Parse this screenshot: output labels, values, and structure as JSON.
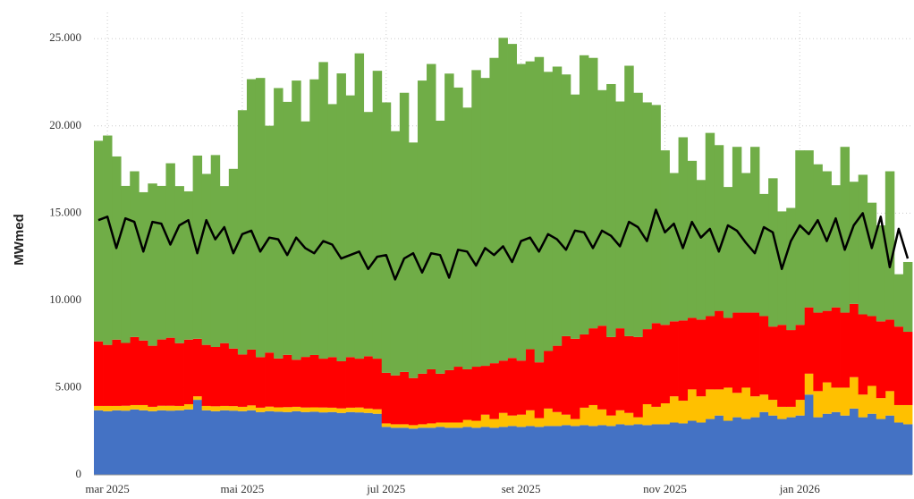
{
  "chart_data": {
    "type": "bar",
    "stacked": true,
    "y_label": "MWmed",
    "categories": [
      null,
      "mar 2025",
      null,
      null,
      null,
      null,
      null,
      null,
      null,
      null,
      null,
      null,
      null,
      null,
      null,
      null,
      "mai 2025",
      null,
      null,
      null,
      null,
      null,
      null,
      null,
      null,
      null,
      null,
      null,
      null,
      null,
      null,
      null,
      "jul 2025",
      null,
      null,
      null,
      null,
      null,
      null,
      null,
      null,
      null,
      null,
      null,
      null,
      null,
      null,
      "set 2025",
      null,
      null,
      null,
      null,
      null,
      null,
      null,
      null,
      null,
      null,
      null,
      null,
      null,
      null,
      null,
      "nov 2025",
      null,
      null,
      null,
      null,
      null,
      null,
      null,
      null,
      null,
      null,
      null,
      null,
      null,
      null,
      "jan 2026",
      null,
      null,
      null,
      null,
      null,
      null,
      null,
      null,
      null,
      null,
      null,
      null
    ],
    "series": [
      {
        "color": "#4472c4",
        "values": [
          3700,
          3650,
          3700,
          3680,
          3750,
          3700,
          3650,
          3700,
          3680,
          3700,
          3750,
          4300,
          3700,
          3650,
          3700,
          3680,
          3650,
          3700,
          3600,
          3650,
          3620,
          3600,
          3650,
          3600,
          3620,
          3580,
          3600,
          3550,
          3600,
          3580,
          3550,
          3500,
          2750,
          2700,
          2700,
          2650,
          2700,
          2700,
          2750,
          2700,
          2700,
          2750,
          2700,
          2750,
          2700,
          2750,
          2800,
          2750,
          2800,
          2750,
          2800,
          2800,
          2850,
          2800,
          2850,
          2800,
          2850,
          2800,
          2900,
          2850,
          2900,
          2850,
          2900,
          2900,
          3000,
          2950,
          3100,
          3000,
          3200,
          3400,
          3100,
          3300,
          3200,
          3300,
          3600,
          3400,
          3200,
          3300,
          3400,
          4600,
          3300,
          3500,
          3600,
          3400,
          3800,
          3300,
          3500,
          3200,
          3400,
          3000,
          2900
        ]
      },
      {
        "color": "#ffc000",
        "values": [
          250,
          300,
          250,
          280,
          250,
          300,
          250,
          260,
          280,
          250,
          300,
          200,
          250,
          280,
          250,
          260,
          250,
          280,
          250,
          260,
          250,
          280,
          250,
          260,
          250,
          280,
          250,
          260,
          250,
          280,
          250,
          260,
          200,
          200,
          200,
          200,
          200,
          250,
          250,
          300,
          300,
          400,
          400,
          700,
          500,
          800,
          600,
          700,
          900,
          500,
          1000,
          800,
          600,
          400,
          1000,
          1200,
          900,
          600,
          800,
          700,
          400,
          1200,
          1000,
          1200,
          1500,
          1300,
          1800,
          1500,
          1700,
          1500,
          1900,
          1400,
          1800,
          1200,
          1000,
          900,
          700,
          600,
          900,
          1200,
          1500,
          1800,
          1400,
          1600,
          1800,
          1300,
          1600,
          1200,
          1400,
          1000,
          1100
        ]
      },
      {
        "color": "#ff0000",
        "values": [
          3700,
          3500,
          3800,
          3600,
          3900,
          3700,
          3500,
          3800,
          3900,
          3600,
          3700,
          3300,
          3500,
          3400,
          3600,
          3300,
          3000,
          3200,
          2900,
          3100,
          2800,
          3000,
          2700,
          2900,
          3000,
          2800,
          2900,
          2700,
          2900,
          2800,
          3000,
          2900,
          2900,
          2800,
          3000,
          2700,
          2900,
          3100,
          2800,
          3000,
          3200,
          2900,
          3100,
          2800,
          3200,
          3000,
          3300,
          3100,
          3500,
          3200,
          3300,
          3800,
          4500,
          4600,
          4200,
          4400,
          4800,
          4500,
          4700,
          4400,
          4600,
          4300,
          4800,
          4500,
          4300,
          4600,
          4100,
          4400,
          4200,
          4500,
          4000,
          4600,
          4300,
          4800,
          4500,
          4200,
          4700,
          4400,
          4300,
          3800,
          4500,
          4100,
          4600,
          4300,
          4200,
          4600,
          4000,
          4400,
          4100,
          4500,
          4200
        ]
      },
      {
        "color": "#70ad47",
        "values": [
          11500,
          12000,
          10500,
          9000,
          9500,
          8500,
          9300,
          8800,
          10000,
          9000,
          8500,
          10500,
          9800,
          11000,
          9000,
          10300,
          14000,
          15500,
          16000,
          13000,
          15500,
          14500,
          16000,
          13500,
          15800,
          17000,
          14500,
          16500,
          15000,
          17500,
          14000,
          16500,
          15500,
          14000,
          16000,
          13500,
          16800,
          17500,
          14500,
          17000,
          16000,
          15000,
          17000,
          16500,
          17500,
          18500,
          18000,
          17000,
          16500,
          17500,
          16000,
          16000,
          15000,
          14000,
          16000,
          15500,
          13500,
          14500,
          13000,
          15500,
          14000,
          13000,
          12500,
          10000,
          8500,
          10500,
          9000,
          8000,
          10500,
          9500,
          7500,
          9500,
          8000,
          9500,
          7000,
          8500,
          6500,
          7000,
          10000,
          9000,
          8500,
          8000,
          7000,
          9500,
          7000,
          8000,
          6500,
          5500,
          8500,
          3000,
          4000
        ]
      },
      {
        "color": "#000000",
        "type": "line",
        "values": [
          14600,
          14800,
          13000,
          14700,
          14500,
          12800,
          14500,
          14400,
          13200,
          14300,
          14600,
          12700,
          14600,
          13500,
          14200,
          12700,
          13800,
          14000,
          12800,
          13600,
          13500,
          12600,
          13600,
          13000,
          12700,
          13400,
          13200,
          12400,
          12600,
          12800,
          11800,
          12500,
          12600,
          11200,
          12400,
          12700,
          11600,
          12700,
          12600,
          11300,
          12900,
          12800,
          12000,
          13000,
          12600,
          13100,
          12200,
          13400,
          13600,
          12800,
          13800,
          13500,
          12900,
          14000,
          13900,
          13000,
          14000,
          13700,
          13100,
          14500,
          14200,
          13400,
          15200,
          13900,
          14400,
          13000,
          14500,
          13600,
          14100,
          12800,
          14300,
          14000,
          13300,
          12700,
          14200,
          13900,
          11800,
          13400,
          14300,
          13800,
          14600,
          13400,
          14700,
          12900,
          14300,
          15000,
          13000,
          14800,
          11900,
          14100,
          12400
        ]
      }
    ],
    "ylim": [
      0,
      26500
    ],
    "yticks": [
      0,
      {
        "value": 5000,
        "label": "5.000"
      },
      {
        "value": 10000,
        "label": "10.000"
      },
      {
        "value": 15000,
        "label": "15.000"
      },
      {
        "value": 20000,
        "label": "20.000"
      },
      {
        "value": 25000,
        "label": "25.000"
      }
    ],
    "grid": true
  }
}
